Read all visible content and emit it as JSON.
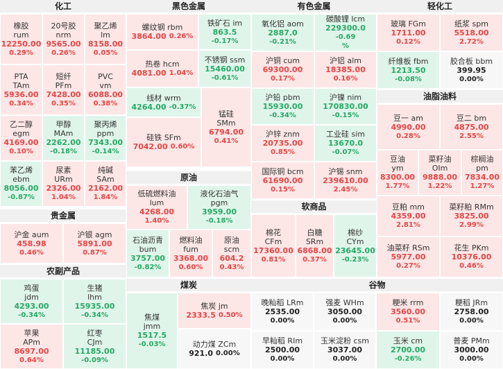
{
  "sections": {
    "hg": {
      "title": "化工",
      "items": [
        {
          "n1": "橡胶",
          "n2": "rum",
          "p": "12250.00",
          "c": "0.29%",
          "s": "up"
        },
        {
          "n1": "20号胶",
          "n2": "nrm",
          "p": "9565.00",
          "c": "0.26%",
          "s": "up"
        },
        {
          "n1": "聚乙烯",
          "n2": "lm",
          "p": "8158.00",
          "c": "0.05%",
          "s": "up"
        },
        {
          "n1": "PTA",
          "n2": "TAm",
          "p": "5936.00",
          "c": "0.34%",
          "s": "up"
        },
        {
          "n1": "短纤",
          "n2": "PFm",
          "p": "7428.00",
          "c": "0.35%",
          "s": "up"
        },
        {
          "n1": "PVC",
          "n2": "vm",
          "p": "6088.00",
          "c": "0.38%",
          "s": "up"
        },
        {
          "n1": "乙二醇",
          "n2": "egm",
          "p": "4169.00",
          "c": "0.10%",
          "s": "up"
        },
        {
          "n1": "甲醇",
          "n2": "MAm",
          "p": "2262.00",
          "c": "-0.18%",
          "s": "dn"
        },
        {
          "n1": "聚丙烯",
          "n2": "ppm",
          "p": "7343.00",
          "c": "-0.14%",
          "s": "dn"
        },
        {
          "n1": "苯乙烯",
          "n2": "ebm",
          "p": "8056.00",
          "c": "-0.87%",
          "s": "dn"
        },
        {
          "n1": "尿素",
          "n2": "URm",
          "p": "2326.00",
          "c": "1.04%",
          "s": "up"
        },
        {
          "n1": "纯碱",
          "n2": "SAm",
          "p": "2162.00",
          "c": "1.84%",
          "s": "up"
        }
      ]
    },
    "gjs": {
      "title": "贵金属",
      "items": [
        {
          "n1": "沪金 aum",
          "p": "458.98",
          "c": "0.46%",
          "s": "up"
        },
        {
          "n1": "沪银 agm",
          "p": "5891.00",
          "c": "0.87%",
          "s": "up"
        }
      ]
    },
    "nf": {
      "title": "农副产品",
      "items": [
        {
          "n1": "鸡蛋",
          "n2": "jdm",
          "p": "4293.00",
          "c": "-0.34%",
          "s": "dn"
        },
        {
          "n1": "生猪",
          "n2": "lhm",
          "p": "15935.00",
          "c": "-0.34%",
          "s": "dn"
        },
        {
          "n1": "苹果",
          "n2": "APm",
          "p": "8697.00",
          "c": "0.64%",
          "s": "up"
        },
        {
          "n1": "红枣",
          "n2": "CJm",
          "p": "11185.00",
          "c": "-0.09%",
          "s": "dn"
        }
      ]
    },
    "hs": {
      "title": "黑色金属",
      "items": [
        {
          "n1": "螺纹钢 rbm",
          "p": "3864.00",
          "c": "0.26%",
          "s": "up"
        },
        {
          "n1": "铁矿石 im",
          "p": "863.5",
          "c": "-0.17%",
          "s": "dn"
        },
        {
          "n1": "热卷 hcm",
          "p": "4081.00",
          "c": "1.04%",
          "s": "up"
        },
        {
          "n1": "不锈钢 ssm",
          "p": "15460.00",
          "c": "-0.61%",
          "s": "dn"
        },
        {
          "n1": "线材 wrm",
          "p": "4264.00",
          "c": "-0.37%",
          "s": "dn"
        },
        {
          "n1": "锰硅",
          "n2": "SMm",
          "p": "6794.00",
          "c": "0.41%",
          "s": "up"
        },
        {
          "n1": "硅铁 SFm",
          "p": "7042.00",
          "c": "0.60%",
          "s": "up"
        }
      ]
    },
    "yy": {
      "title": "原油",
      "items": [
        {
          "n1": "低硫燃料油",
          "n2": "lum",
          "p": "4268.00",
          "c": "1.40%",
          "s": "up"
        },
        {
          "n1": "液化石油气",
          "n2": "pgm",
          "p": "3959.00",
          "c": "-0.18%",
          "s": "dn"
        },
        {
          "n1": "石油沥青",
          "n2": "bum",
          "p": "3757.00",
          "c": "-0.82%",
          "s": "dn"
        },
        {
          "n1": "燃料油",
          "n2": "fum",
          "p": "3368.00",
          "c": "0.60%",
          "s": "up"
        },
        {
          "n1": "原油",
          "n2": "scm",
          "p": "604.2",
          "c": "0.43%",
          "s": "up"
        }
      ]
    },
    "mt": {
      "title": "煤炭",
      "items": [
        {
          "n1": "焦煤",
          "n2": "jmm",
          "p": "1517.5",
          "c": "-0.03%",
          "s": "dn"
        },
        {
          "n1": "焦炭 jm",
          "p": "2333.5",
          "c": "0.50%",
          "s": "up"
        },
        {
          "n1": "动力煤 ZCm",
          "p": "921.0",
          "c": "0.00%",
          "s": "fl"
        }
      ]
    },
    "ys": {
      "title": "有色金属",
      "items": [
        {
          "n1": "氧化铝 aom",
          "p": "2887.0",
          "c": "-0.21%",
          "s": "dn"
        },
        {
          "n1": "碳酸锂 lcm",
          "p": "229300.0",
          "c": "-0.69",
          "c2": "%",
          "s": "dn"
        },
        {
          "n1": "沪铜 cum",
          "p": "69300.00",
          "c": "0.17%",
          "s": "up"
        },
        {
          "n1": "沪铝 alm",
          "p": "18385.00",
          "c": "0.16%",
          "s": "up"
        },
        {
          "n1": "沪铅 pbm",
          "p": "15930.00",
          "c": "-0.34%",
          "s": "dn"
        },
        {
          "n1": "沪镍 nim",
          "p": "170830.00",
          "c": "-0.15%",
          "s": "dn"
        },
        {
          "n1": "沪锌 znm",
          "p": "20735.00",
          "c": "0.85%",
          "s": "up"
        },
        {
          "n1": "工业硅 sim",
          "p": "13670.0",
          "c": "-0.07%",
          "s": "dn"
        },
        {
          "n1": "国际铜 bcm",
          "p": "61690.00",
          "c": "0.15%",
          "s": "up"
        },
        {
          "n1": "沪锡 snm",
          "p": "239610.00",
          "c": "2.45%",
          "s": "up"
        }
      ]
    },
    "rs": {
      "title": "软商品",
      "items": [
        {
          "n1": "棉花",
          "n2": "CFm",
          "p": "17360.00",
          "c": "0.81%",
          "s": "up"
        },
        {
          "n1": "白糖",
          "n2": "SRm",
          "p": "6868.00",
          "c": "0.37%",
          "s": "up"
        },
        {
          "n1": "棉纱",
          "n2": "CYm",
          "p": "23645.00",
          "c": "-0.23%",
          "s": "dn"
        }
      ]
    },
    "gw": {
      "title": "谷物",
      "items": [
        {
          "n1": "晚籼稻 LRm",
          "p": "2535.00",
          "c": "0.00%",
          "s": "fl"
        },
        {
          "n1": "强麦 WHm",
          "p": "3050.00",
          "c": "0.00%",
          "s": "fl"
        },
        {
          "n1": "粳米 rrm",
          "p": "3560.00",
          "c": "0.51%",
          "s": "up"
        },
        {
          "n1": "粳稻 JRm",
          "p": "2758.00",
          "c": "0.00%",
          "s": "fl"
        },
        {
          "n1": "早籼稻 RIm",
          "p": "2500.00",
          "c": "0.00%",
          "s": "fl"
        },
        {
          "n1": "玉米淀粉 csm",
          "p": "3037.00",
          "c": "0.00%",
          "s": "fl"
        },
        {
          "n1": "玉米 cm",
          "p": "2700.00",
          "c": "-0.26%",
          "s": "dn"
        },
        {
          "n1": "普麦 PMm",
          "p": "3000.00",
          "c": "0.00%",
          "s": "fl"
        }
      ]
    },
    "qh": {
      "title": "轻化工",
      "items": [
        {
          "n1": "玻璃 FGm",
          "p": "1711.00",
          "c": "0.12%",
          "s": "up"
        },
        {
          "n1": "纸浆 spm",
          "p": "5518.00",
          "c": "2.72%",
          "s": "up"
        },
        {
          "n1": "纤维板 fbm",
          "p": "1213.50",
          "c": "-0.08%",
          "s": "dn"
        },
        {
          "n1": "胶合板 bbm",
          "p": "399.95",
          "c": "0.00%",
          "s": "fl"
        }
      ]
    },
    "yz": {
      "title": "油脂油料",
      "items": [
        {
          "n1": "豆一 am",
          "p": "4990.00",
          "c": "0.28%",
          "s": "up"
        },
        {
          "n1": "豆二 bm",
          "p": "4875.00",
          "c": "2.55%",
          "s": "up"
        },
        {
          "n1": "豆油",
          "n2": "ym",
          "p": "8300.00",
          "c": "1.77%",
          "s": "up"
        },
        {
          "n1": "菜籽油",
          "n2": "OIm",
          "p": "9888.00",
          "c": "1.22%",
          "s": "up"
        },
        {
          "n1": "棕榈油",
          "n2": "pm",
          "p": "7834.00",
          "c": "1.27%",
          "s": "up"
        },
        {
          "n1": "豆粕 mm",
          "p": "4359.00",
          "c": "2.81%",
          "s": "up"
        },
        {
          "n1": "菜籽粕 RMm",
          "p": "3825.00",
          "c": "2.99%",
          "s": "up"
        },
        {
          "n1": "油菜籽 RSm",
          "p": "5977.00",
          "c": "0.27%",
          "s": "up"
        },
        {
          "n1": "花生 PKm",
          "p": "10376.00",
          "c": "0.46%",
          "s": "up"
        }
      ]
    }
  }
}
